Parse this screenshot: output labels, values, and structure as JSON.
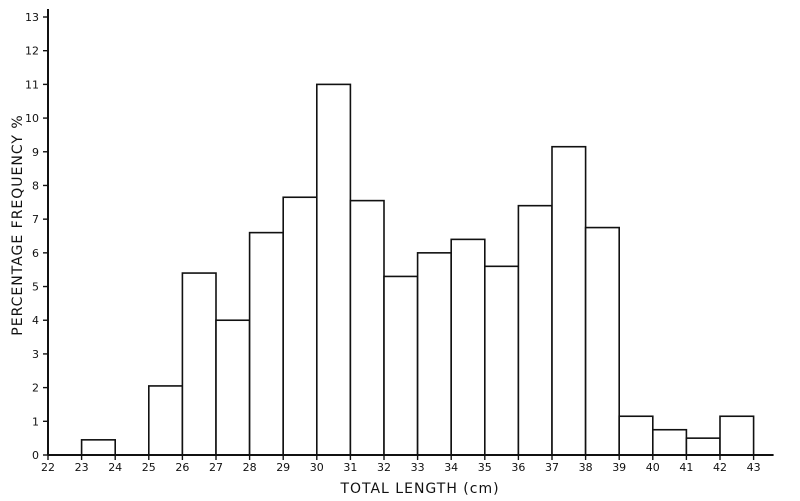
{
  "chart_data": {
    "type": "bar",
    "title": "",
    "xlabel": "TOTAL  LENGTH  (cm)",
    "ylabel": "PERCENTAGE   FREQUENCY  %",
    "ylim": [
      0,
      13
    ],
    "xlim": [
      22,
      43
    ],
    "y_ticks": [
      "0",
      "1",
      "2",
      "3",
      "4",
      "5",
      "6",
      "7",
      "8",
      "9",
      "10",
      "11",
      "12",
      "13"
    ],
    "x_ticks": [
      "22",
      "23",
      "24",
      "25",
      "26",
      "27",
      "28",
      "29",
      "30",
      "31",
      "32",
      "33",
      "34",
      "35",
      "36",
      "37",
      "38",
      "39",
      "40",
      "41",
      "42",
      "43"
    ],
    "categories": [
      "23",
      "24",
      "25",
      "26",
      "27",
      "28",
      "29",
      "30",
      "31",
      "32",
      "33",
      "34",
      "35",
      "36",
      "37",
      "38",
      "39",
      "40",
      "41",
      "42"
    ],
    "values": [
      0.45,
      0,
      2.05,
      5.4,
      4.0,
      6.6,
      7.65,
      11.0,
      7.55,
      5.3,
      6.0,
      6.4,
      5.6,
      7.4,
      9.15,
      6.75,
      1.15,
      0.75,
      0.5,
      1.15
    ],
    "grid": false,
    "legend": "none"
  }
}
